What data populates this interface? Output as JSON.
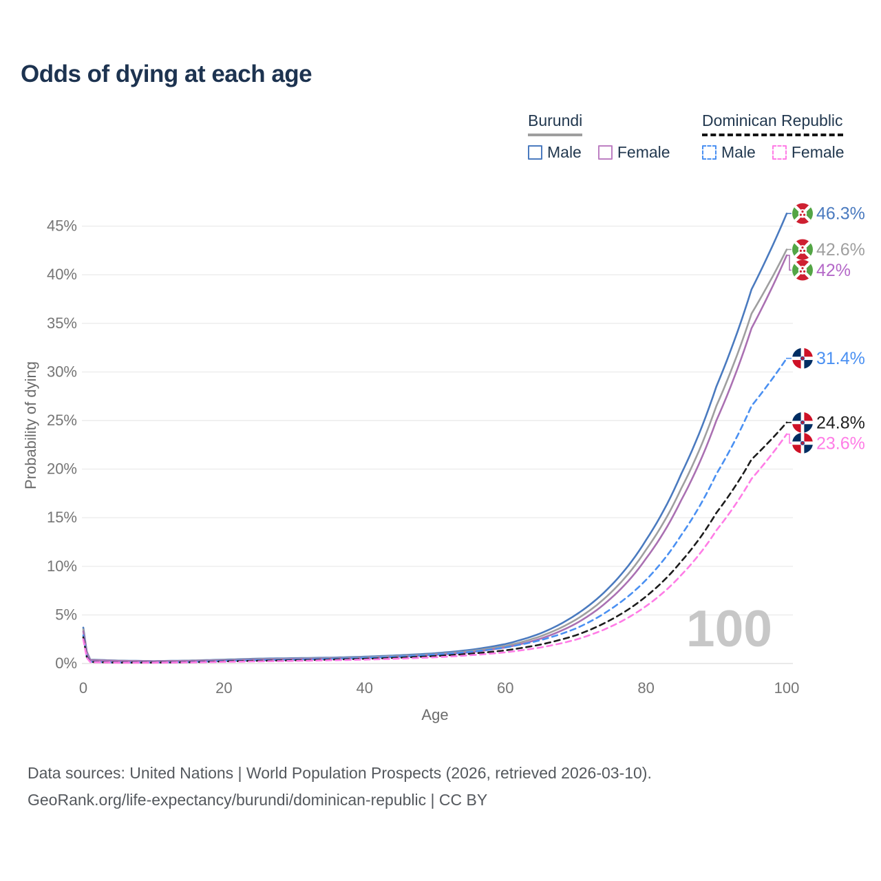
{
  "header": {
    "title": "Odds of dying at each age",
    "title_color": "#1d3350"
  },
  "legend": {
    "text_color": "#22384f",
    "groups": [
      {
        "id": "burundi",
        "label": "Burundi",
        "line_style": "solid",
        "line_color": "#9e9e9e",
        "items": [
          {
            "label": "Male",
            "swatch_color": "#4a7abf",
            "swatch_style": "solid"
          },
          {
            "label": "Female",
            "swatch_color": "#bd7fc2",
            "swatch_style": "solid"
          }
        ]
      },
      {
        "id": "dominican-republic",
        "label": "Dominican Republic",
        "line_style": "dashed",
        "line_color": "#141414",
        "items": [
          {
            "label": "Male",
            "swatch_color": "#4a90f2",
            "swatch_style": "dashed"
          },
          {
            "label": "Female",
            "swatch_color": "#ff7ce6",
            "swatch_style": "dashed"
          }
        ]
      }
    ]
  },
  "chart_data": {
    "type": "line",
    "title": "Odds of dying at each age",
    "xlabel": "Age",
    "ylabel": "Probability of dying",
    "xlim": [
      0,
      100
    ],
    "ylim": [
      0,
      47
    ],
    "x_ticks": [
      0,
      20,
      40,
      60,
      80,
      100
    ],
    "y_ticks": [
      "0%",
      "5%",
      "10%",
      "15%",
      "20%",
      "25%",
      "30%",
      "35%",
      "40%",
      "45%"
    ],
    "grid": "horizontal",
    "legend_position": "top-right",
    "frame_label": "100",
    "ages": [
      0,
      1,
      5,
      10,
      15,
      20,
      25,
      30,
      35,
      40,
      45,
      50,
      55,
      60,
      65,
      70,
      75,
      80,
      85,
      90,
      95,
      100
    ],
    "series": [
      {
        "name": "Burundi Male",
        "country": "Burundi",
        "sex": "Male",
        "style": "solid",
        "color": "#4a7abf",
        "end_label": "46.3%",
        "end_value": 46.3,
        "label_color": "#4a7abf",
        "values": [
          3.7,
          0.4,
          0.3,
          0.25,
          0.3,
          0.4,
          0.5,
          0.55,
          0.6,
          0.7,
          0.85,
          1.05,
          1.4,
          2.0,
          3.1,
          5.0,
          8.0,
          12.7,
          19.5,
          28.5,
          38.5,
          46.3
        ]
      },
      {
        "name": "Burundi Both sexes",
        "country": "Burundi",
        "sex": "Both",
        "style": "solid",
        "color": "#9f9f9f",
        "end_label": "42.6%",
        "end_value": 42.6,
        "label_color": "#9f9f9f",
        "values": [
          3.5,
          0.37,
          0.28,
          0.23,
          0.28,
          0.36,
          0.45,
          0.5,
          0.55,
          0.64,
          0.78,
          0.96,
          1.28,
          1.8,
          2.8,
          4.5,
          7.3,
          11.7,
          18.0,
          26.5,
          36.0,
          42.6
        ]
      },
      {
        "name": "Burundi Female",
        "country": "Burundi",
        "sex": "Female",
        "style": "solid",
        "color": "#aa70b2",
        "end_label": "42%",
        "end_value": 42.0,
        "label_color": "#b468c8",
        "values": [
          3.3,
          0.34,
          0.26,
          0.22,
          0.26,
          0.32,
          0.4,
          0.45,
          0.5,
          0.58,
          0.7,
          0.88,
          1.15,
          1.65,
          2.55,
          4.1,
          6.7,
          10.8,
          16.8,
          25.0,
          34.5,
          42.0
        ]
      },
      {
        "name": "Dominican Republic Male",
        "country": "Dominican Republic",
        "sex": "Male",
        "style": "dashed",
        "color": "#4a90f2",
        "end_label": "31.4%",
        "end_value": 31.4,
        "label_color": "#4a90f2",
        "values": [
          2.9,
          0.18,
          0.1,
          0.1,
          0.15,
          0.28,
          0.35,
          0.4,
          0.48,
          0.58,
          0.72,
          0.92,
          1.2,
          1.65,
          2.4,
          3.6,
          5.6,
          8.6,
          13.2,
          19.5,
          26.5,
          31.4
        ]
      },
      {
        "name": "Dominican Republic Both sexes",
        "country": "Dominican Republic",
        "sex": "Both",
        "style": "dashed",
        "color": "#1c1c1c",
        "end_label": "24.8%",
        "end_value": 24.8,
        "label_color": "#1f1f1f",
        "values": [
          2.7,
          0.16,
          0.09,
          0.09,
          0.13,
          0.22,
          0.28,
          0.33,
          0.4,
          0.48,
          0.6,
          0.76,
          1.0,
          1.35,
          1.95,
          2.9,
          4.5,
          6.9,
          10.5,
          15.5,
          21.0,
          24.8
        ]
      },
      {
        "name": "Dominican Republic Female",
        "country": "Dominican Republic",
        "sex": "Female",
        "style": "dashed",
        "color": "#ff7ce6",
        "end_label": "23.6%",
        "end_value": 23.6,
        "label_color": "#ff7ce6",
        "values": [
          2.5,
          0.14,
          0.08,
          0.08,
          0.11,
          0.17,
          0.22,
          0.27,
          0.33,
          0.4,
          0.5,
          0.64,
          0.85,
          1.15,
          1.65,
          2.45,
          3.8,
          5.9,
          9.1,
          13.7,
          19.0,
          23.6
        ]
      }
    ],
    "colors": {
      "grid": "#ececec",
      "baseline": "#e2e2e2",
      "tick_text": "#757575",
      "watermark": "#c7c7c7"
    }
  },
  "footer": {
    "line1": "Data sources: United Nations | World Population Prospects (2026, retrieved 2026-03-10).",
    "line2": "GeoRank.org/life-expectancy/burundi/dominican-republic | CC BY"
  }
}
